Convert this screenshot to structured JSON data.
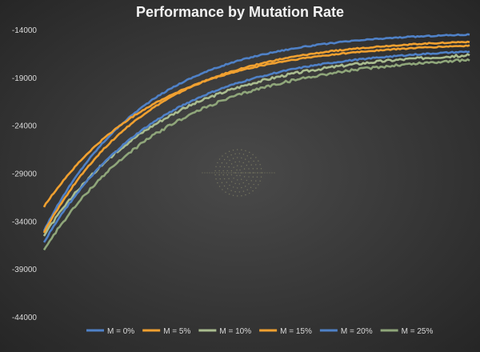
{
  "chart_data": {
    "type": "line",
    "title": "Performance by Mutation Rate",
    "xlabel": "",
    "ylabel": "",
    "ylim": [
      -44000,
      -14000
    ],
    "y_ticks": [
      -14000,
      -19000,
      -24000,
      -29000,
      -34000,
      -39000,
      -44000
    ],
    "x_range": [
      0,
      100
    ],
    "grid": false,
    "legend_position": "bottom",
    "series": [
      {
        "name": "M = 0%",
        "color": "#4f81c7",
        "start": -35000,
        "end": -14200,
        "rate": 4.2,
        "noise": 60
      },
      {
        "name": "M = 5%",
        "color": "#f0a030",
        "start": -32500,
        "end": -15300,
        "rate": 3.8,
        "noise": 60
      },
      {
        "name": "M = 10%",
        "color": "#a9bc8f",
        "start": -35500,
        "end": -16100,
        "rate": 3.5,
        "noise": 130
      },
      {
        "name": "M = 15%",
        "color": "#f0a030",
        "start": -35200,
        "end": -14900,
        "rate": 4.0,
        "noise": 60
      },
      {
        "name": "M = 20%",
        "color": "#4f81c7",
        "start": -36200,
        "end": -15800,
        "rate": 3.7,
        "noise": 70
      },
      {
        "name": "M = 25%",
        "color": "#8fa67a",
        "start": -37000,
        "end": -16500,
        "rate": 3.4,
        "noise": 130
      }
    ]
  }
}
